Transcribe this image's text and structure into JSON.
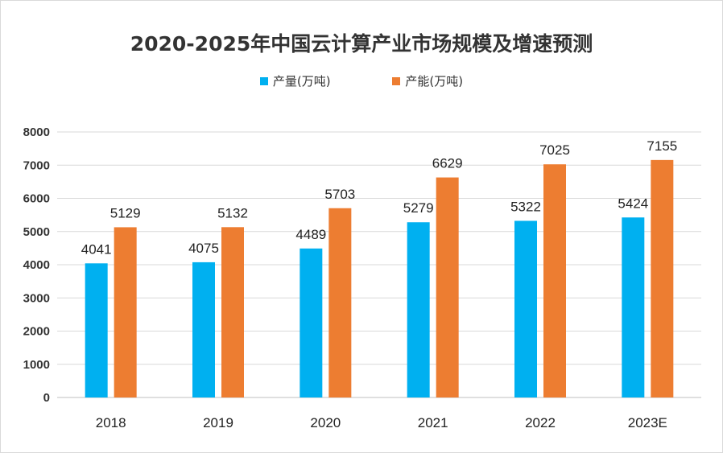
{
  "chart_data": {
    "type": "bar",
    "title": "2020-2025年中国云计算产业市场规模及增速预测",
    "categories": [
      "2018",
      "2019",
      "2020",
      "2021",
      "2022",
      "2023E"
    ],
    "series": [
      {
        "name": "产量(万吨)",
        "color": "#00B0F0",
        "values": [
          4041,
          4075,
          4489,
          5279,
          5322,
          5424
        ]
      },
      {
        "name": "产能(万吨)",
        "color": "#ED7D31",
        "values": [
          5129,
          5132,
          5703,
          6629,
          7025,
          7155
        ]
      }
    ],
    "xlabel": "",
    "ylabel": "",
    "ylim": [
      0,
      8000
    ],
    "yticks": [
      0,
      1000,
      2000,
      3000,
      4000,
      5000,
      6000,
      7000,
      8000
    ],
    "grid": true,
    "legend": "top"
  }
}
